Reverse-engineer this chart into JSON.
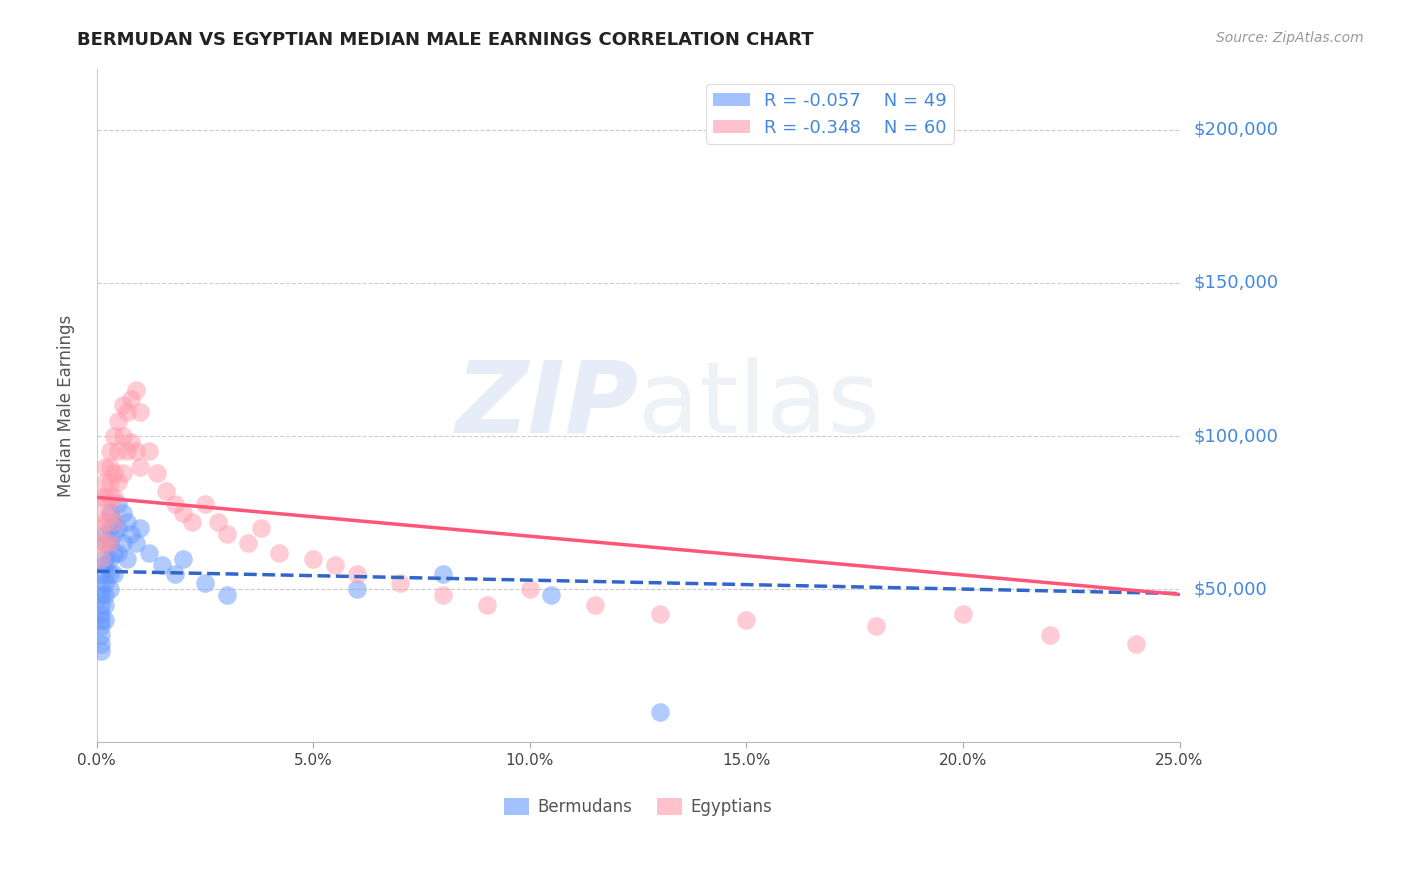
{
  "title": "BERMUDAN VS EGYPTIAN MEDIAN MALE EARNINGS CORRELATION CHART",
  "source": "Source: ZipAtlas.com",
  "ylabel": "Median Male Earnings",
  "xmin": 0.0,
  "xmax": 0.25,
  "ymin": 0,
  "ymax": 220000,
  "yticks": [
    0,
    50000,
    100000,
    150000,
    200000
  ],
  "ytick_labels": [
    "",
    "$50,000",
    "$100,000",
    "$150,000",
    "$200,000"
  ],
  "xticks": [
    0.0,
    0.05,
    0.1,
    0.15,
    0.2,
    0.25
  ],
  "xtick_labels": [
    "0.0%",
    "5.0%",
    "10.0%",
    "15.0%",
    "20.0%",
    "25.0%"
  ],
  "bermudan_color": "#6699ff",
  "egyptian_color": "#ff99aa",
  "bermudan_R": -0.057,
  "bermudan_N": 49,
  "egyptian_R": -0.348,
  "egyptian_N": 60,
  "legend_label_1": "Bermudans",
  "legend_label_2": "Egyptians",
  "watermark_zip": "ZIP",
  "watermark_atlas": "atlas",
  "bermudan_x": [
    0.001,
    0.001,
    0.001,
    0.001,
    0.001,
    0.001,
    0.001,
    0.001,
    0.001,
    0.001,
    0.002,
    0.002,
    0.002,
    0.002,
    0.002,
    0.002,
    0.002,
    0.002,
    0.002,
    0.003,
    0.003,
    0.003,
    0.003,
    0.003,
    0.003,
    0.004,
    0.004,
    0.004,
    0.004,
    0.005,
    0.005,
    0.005,
    0.006,
    0.006,
    0.007,
    0.007,
    0.008,
    0.009,
    0.01,
    0.012,
    0.015,
    0.018,
    0.02,
    0.025,
    0.03,
    0.06,
    0.08,
    0.105,
    0.13
  ],
  "bermudan_y": [
    55000,
    50000,
    48000,
    45000,
    42000,
    40000,
    38000,
    35000,
    32000,
    30000,
    68000,
    65000,
    60000,
    58000,
    55000,
    52000,
    48000,
    45000,
    40000,
    75000,
    70000,
    65000,
    60000,
    55000,
    50000,
    72000,
    68000,
    62000,
    55000,
    78000,
    70000,
    62000,
    75000,
    65000,
    72000,
    60000,
    68000,
    65000,
    70000,
    62000,
    58000,
    55000,
    60000,
    52000,
    48000,
    50000,
    55000,
    48000,
    10000
  ],
  "egyptian_x": [
    0.001,
    0.001,
    0.001,
    0.001,
    0.001,
    0.002,
    0.002,
    0.002,
    0.002,
    0.002,
    0.003,
    0.003,
    0.003,
    0.003,
    0.003,
    0.003,
    0.004,
    0.004,
    0.004,
    0.004,
    0.005,
    0.005,
    0.005,
    0.006,
    0.006,
    0.006,
    0.007,
    0.007,
    0.008,
    0.008,
    0.009,
    0.009,
    0.01,
    0.01,
    0.012,
    0.014,
    0.016,
    0.018,
    0.02,
    0.022,
    0.025,
    0.028,
    0.03,
    0.035,
    0.038,
    0.042,
    0.05,
    0.055,
    0.06,
    0.07,
    0.08,
    0.09,
    0.1,
    0.115,
    0.13,
    0.15,
    0.18,
    0.2,
    0.22,
    0.24
  ],
  "egyptian_y": [
    80000,
    75000,
    70000,
    65000,
    60000,
    90000,
    85000,
    80000,
    72000,
    65000,
    95000,
    90000,
    85000,
    80000,
    75000,
    65000,
    100000,
    88000,
    80000,
    72000,
    105000,
    95000,
    85000,
    110000,
    100000,
    88000,
    108000,
    95000,
    112000,
    98000,
    115000,
    95000,
    108000,
    90000,
    95000,
    88000,
    82000,
    78000,
    75000,
    72000,
    78000,
    72000,
    68000,
    65000,
    70000,
    62000,
    60000,
    58000,
    55000,
    52000,
    48000,
    45000,
    50000,
    45000,
    42000,
    40000,
    38000,
    42000,
    35000,
    32000
  ],
  "title_color": "#222222",
  "axis_label_color": "#555555",
  "tick_color_y": "#4488dd",
  "tick_color_x": "#444444",
  "regression_blue_color": "#3366cc",
  "regression_pink_color": "#ff5577",
  "grid_color": "#cccccc",
  "background_color": "#ffffff"
}
